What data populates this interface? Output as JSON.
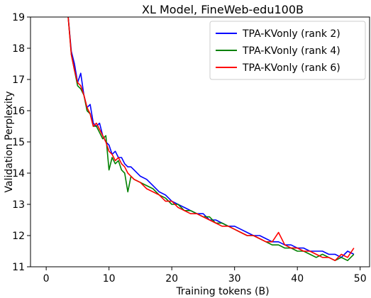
{
  "chart_data": {
    "type": "line",
    "title": "XL Model, FineWeb-edu100B",
    "xlabel": "Training tokens (B)",
    "ylabel": "Validation Perplexity",
    "xlim": [
      -2.5,
      51.5
    ],
    "ylim": [
      11,
      19
    ],
    "xticks": [
      0,
      10,
      20,
      30,
      40,
      50
    ],
    "yticks": [
      11,
      12,
      13,
      14,
      15,
      16,
      17,
      18,
      19
    ],
    "grid": false,
    "legend_position": "top-right",
    "series": [
      {
        "name": "TPA-KVonly (rank 2)",
        "color": "#0000ff",
        "x": [
          3.0,
          3.5,
          4.0,
          4.5,
          5.0,
          5.5,
          6.0,
          6.5,
          7.0,
          7.5,
          8.0,
          8.5,
          9.0,
          9.5,
          10.0,
          10.5,
          11.0,
          11.5,
          12.0,
          12.5,
          13.0,
          13.5,
          14.0,
          15.0,
          16.0,
          17.0,
          18.0,
          19.0,
          20.0,
          21.0,
          22.0,
          23.0,
          24.0,
          25.0,
          26.0,
          27.0,
          28.0,
          29.0,
          30.0,
          31.0,
          32.0,
          33.0,
          34.0,
          35.0,
          36.0,
          37.0,
          38.0,
          39.0,
          40.0,
          41.0,
          42.0,
          43.0,
          44.0,
          45.0,
          46.0,
          47.0,
          48.0,
          49.0
        ],
        "values": [
          20.5,
          19.0,
          17.9,
          17.5,
          16.9,
          17.2,
          16.5,
          16.1,
          16.2,
          15.6,
          15.5,
          15.6,
          15.2,
          15.0,
          14.9,
          14.6,
          14.7,
          14.5,
          14.5,
          14.3,
          14.2,
          14.2,
          14.1,
          13.9,
          13.8,
          13.6,
          13.4,
          13.3,
          13.1,
          13.0,
          12.9,
          12.8,
          12.7,
          12.7,
          12.5,
          12.5,
          12.4,
          12.3,
          12.3,
          12.2,
          12.1,
          12.0,
          12.0,
          11.9,
          11.8,
          11.8,
          11.7,
          11.7,
          11.6,
          11.6,
          11.5,
          11.5,
          11.5,
          11.4,
          11.4,
          11.3,
          11.5,
          11.4
        ]
      },
      {
        "name": "TPA-KVonly (rank 4)",
        "color": "#008000",
        "x": [
          3.0,
          3.5,
          4.0,
          4.5,
          5.0,
          5.5,
          6.0,
          6.5,
          7.0,
          7.5,
          8.0,
          8.5,
          9.0,
          9.5,
          10.0,
          10.5,
          11.0,
          11.5,
          12.0,
          12.5,
          13.0,
          13.5,
          14.0,
          15.0,
          16.0,
          17.0,
          18.0,
          19.0,
          20.0,
          21.0,
          22.0,
          23.0,
          24.0,
          25.0,
          26.0,
          27.0,
          28.0,
          29.0,
          30.0,
          31.0,
          32.0,
          33.0,
          34.0,
          35.0,
          36.0,
          37.0,
          38.0,
          39.0,
          40.0,
          41.0,
          42.0,
          43.0,
          44.0,
          45.0,
          46.0,
          47.0,
          48.0,
          49.0
        ],
        "values": [
          20.5,
          19.0,
          17.8,
          17.3,
          16.8,
          16.7,
          16.5,
          16.0,
          15.9,
          15.5,
          15.5,
          15.3,
          15.1,
          15.2,
          14.1,
          14.5,
          14.3,
          14.4,
          14.1,
          14.0,
          13.4,
          13.9,
          13.8,
          13.7,
          13.6,
          13.5,
          13.3,
          13.2,
          13.0,
          13.0,
          12.8,
          12.8,
          12.7,
          12.6,
          12.6,
          12.4,
          12.4,
          12.3,
          12.2,
          12.1,
          12.0,
          12.0,
          11.9,
          11.8,
          11.7,
          11.7,
          11.6,
          11.6,
          11.5,
          11.5,
          11.4,
          11.3,
          11.4,
          11.3,
          11.2,
          11.3,
          11.2,
          11.4
        ]
      },
      {
        "name": "TPA-KVonly (rank 6)",
        "color": "#ff0000",
        "x": [
          3.0,
          3.5,
          4.0,
          4.5,
          5.0,
          5.5,
          6.0,
          6.5,
          7.0,
          7.5,
          8.0,
          8.5,
          9.0,
          9.5,
          10.0,
          10.5,
          11.0,
          11.5,
          12.0,
          12.5,
          13.0,
          13.5,
          14.0,
          15.0,
          16.0,
          17.0,
          18.0,
          19.0,
          20.0,
          21.0,
          22.0,
          23.0,
          24.0,
          25.0,
          26.0,
          27.0,
          28.0,
          29.0,
          30.0,
          31.0,
          32.0,
          33.0,
          34.0,
          35.0,
          36.0,
          37.0,
          38.0,
          39.0,
          40.0,
          41.0,
          42.0,
          43.0,
          44.0,
          45.0,
          46.0,
          47.0,
          48.0,
          49.0
        ],
        "values": [
          20.5,
          19.0,
          17.8,
          17.3,
          16.9,
          16.8,
          16.5,
          16.1,
          15.9,
          15.5,
          15.6,
          15.4,
          15.2,
          15.0,
          14.7,
          14.6,
          14.4,
          14.5,
          14.3,
          14.2,
          14.0,
          13.9,
          13.8,
          13.7,
          13.5,
          13.4,
          13.3,
          13.1,
          13.1,
          12.9,
          12.8,
          12.7,
          12.7,
          12.6,
          12.5,
          12.4,
          12.3,
          12.3,
          12.2,
          12.1,
          12.0,
          12.0,
          11.9,
          11.8,
          11.8,
          12.1,
          11.7,
          11.6,
          11.6,
          11.5,
          11.5,
          11.4,
          11.3,
          11.3,
          11.2,
          11.4,
          11.3,
          11.6
        ]
      }
    ]
  }
}
